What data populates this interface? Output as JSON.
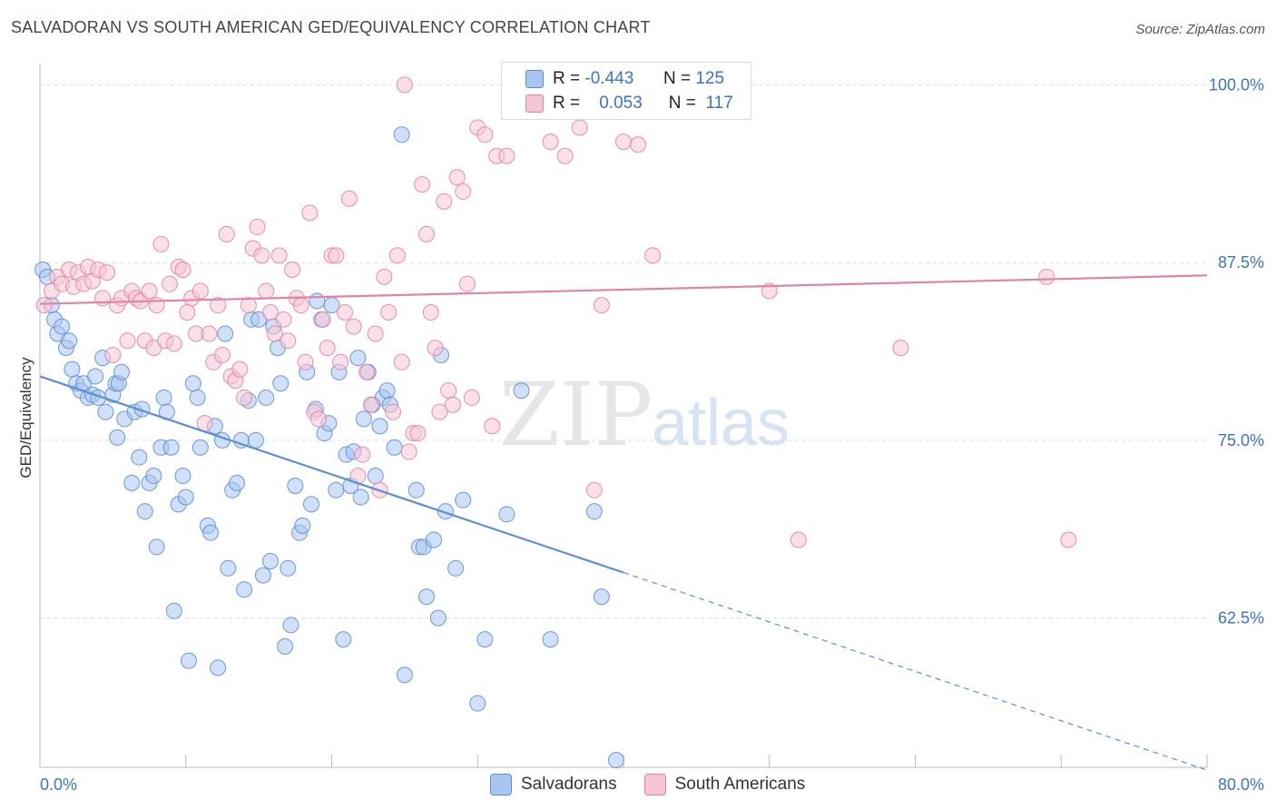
{
  "title": "SALVADORAN VS SOUTH AMERICAN GED/EQUIVALENCY CORRELATION CHART",
  "source": "Source: ZipAtlas.com",
  "watermark": {
    "zip": "ZIP",
    "atlas": "atlas"
  },
  "legend": {
    "rows": [
      {
        "r_label": "R =",
        "r_value": "-0.443",
        "n_label": "N =",
        "n_value": "125",
        "color": "#a9c6f2"
      },
      {
        "r_label": "R =",
        "r_value": "0.053",
        "n_label": "N =",
        "n_value": "117",
        "color": "#f7b7cb"
      }
    ]
  },
  "bottom_legend": [
    {
      "label": "Salvadorans",
      "color": "#a9c6f2",
      "border": "#5b8fd6"
    },
    {
      "label": "South Americans",
      "color": "#f7c6d5",
      "border": "#e283a3"
    }
  ],
  "chart_data": {
    "type": "scatter",
    "title": "SALVADORAN VS SOUTH AMERICAN GED/EQUIVALENCY CORRELATION CHART",
    "xlabel": "",
    "ylabel": "GED/Equivalency",
    "xlim": [
      0,
      80
    ],
    "ylim": [
      52,
      101.5
    ],
    "x_tick_labels": [
      "0.0%",
      "80.0%"
    ],
    "y_ticks": [
      {
        "value": 100,
        "label": "100.0%"
      },
      {
        "value": 87.5,
        "label": "87.5%"
      },
      {
        "value": 75,
        "label": "75.0%"
      },
      {
        "value": 62.5,
        "label": "62.5%"
      }
    ],
    "grid": "horizontal dashed",
    "legend_position": "top-center",
    "series": [
      {
        "name": "Salvadorans",
        "color": "#5b8fd6",
        "fill": "#a9c6f2",
        "trend": {
          "x0": 0,
          "y0": 79.5,
          "x1": 40,
          "y1": 65.7,
          "dash_to_x": 80,
          "dash_to_y": 51.8
        },
        "points": [
          [
            0.2,
            87.0
          ],
          [
            0.5,
            86.5
          ],
          [
            0.8,
            84.5
          ],
          [
            1.0,
            83.5
          ],
          [
            1.2,
            82.5
          ],
          [
            1.5,
            83.0
          ],
          [
            1.8,
            81.5
          ],
          [
            2.0,
            82.0
          ],
          [
            2.2,
            80.0
          ],
          [
            2.5,
            79.0
          ],
          [
            2.8,
            78.5
          ],
          [
            3.0,
            79.0
          ],
          [
            3.3,
            78.0
          ],
          [
            3.6,
            78.2
          ],
          [
            3.8,
            79.5
          ],
          [
            4.0,
            78.0
          ],
          [
            4.3,
            80.8
          ],
          [
            4.5,
            77.0
          ],
          [
            5.0,
            78.2
          ],
          [
            5.2,
            79.0
          ],
          [
            5.3,
            75.2
          ],
          [
            5.4,
            79.0
          ],
          [
            5.6,
            79.8
          ],
          [
            5.8,
            76.5
          ],
          [
            6.3,
            72.0
          ],
          [
            6.5,
            77.0
          ],
          [
            6.8,
            73.8
          ],
          [
            7.0,
            77.2
          ],
          [
            7.2,
            70.0
          ],
          [
            7.5,
            72.0
          ],
          [
            7.8,
            72.5
          ],
          [
            8.0,
            67.5
          ],
          [
            8.3,
            74.5
          ],
          [
            8.5,
            78.0
          ],
          [
            8.7,
            77.0
          ],
          [
            9.0,
            74.5
          ],
          [
            9.2,
            63.0
          ],
          [
            9.5,
            70.5
          ],
          [
            9.8,
            72.5
          ],
          [
            10.0,
            71.0
          ],
          [
            10.2,
            59.5
          ],
          [
            10.5,
            79.0
          ],
          [
            10.8,
            78.0
          ],
          [
            11.0,
            74.5
          ],
          [
            11.5,
            69.0
          ],
          [
            11.7,
            68.5
          ],
          [
            12.0,
            76.0
          ],
          [
            12.2,
            59.0
          ],
          [
            12.5,
            75.0
          ],
          [
            12.7,
            82.5
          ],
          [
            12.9,
            66.0
          ],
          [
            13.2,
            71.5
          ],
          [
            13.5,
            72.0
          ],
          [
            13.8,
            75.0
          ],
          [
            14.0,
            64.5
          ],
          [
            14.3,
            77.8
          ],
          [
            14.5,
            83.5
          ],
          [
            14.8,
            75.0
          ],
          [
            15.0,
            83.5
          ],
          [
            15.3,
            65.5
          ],
          [
            15.5,
            78.0
          ],
          [
            15.8,
            66.5
          ],
          [
            16.0,
            83.0
          ],
          [
            16.3,
            81.5
          ],
          [
            16.5,
            79.0
          ],
          [
            16.8,
            60.5
          ],
          [
            17.0,
            66.0
          ],
          [
            17.2,
            62.0
          ],
          [
            17.5,
            71.8
          ],
          [
            17.8,
            68.5
          ],
          [
            18.0,
            69.0
          ],
          [
            18.3,
            79.8
          ],
          [
            18.6,
            70.5
          ],
          [
            18.9,
            77.2
          ],
          [
            19.0,
            84.8
          ],
          [
            19.3,
            83.5
          ],
          [
            19.5,
            75.5
          ],
          [
            19.8,
            76.2
          ],
          [
            20.0,
            84.5
          ],
          [
            20.3,
            71.5
          ],
          [
            20.5,
            79.8
          ],
          [
            20.8,
            61.0
          ],
          [
            21.0,
            74.0
          ],
          [
            21.3,
            71.8
          ],
          [
            21.5,
            74.2
          ],
          [
            21.8,
            80.8
          ],
          [
            22.0,
            71.0
          ],
          [
            22.2,
            76.5
          ],
          [
            22.5,
            79.8
          ],
          [
            22.8,
            77.5
          ],
          [
            23.0,
            72.5
          ],
          [
            23.3,
            76.0
          ],
          [
            23.5,
            78.0
          ],
          [
            23.8,
            78.5
          ],
          [
            24.0,
            77.5
          ],
          [
            24.3,
            74.5
          ],
          [
            24.8,
            96.5
          ],
          [
            25.0,
            58.5
          ],
          [
            25.8,
            71.5
          ],
          [
            26.0,
            67.5
          ],
          [
            26.3,
            67.5
          ],
          [
            26.5,
            64.0
          ],
          [
            27.0,
            68.0
          ],
          [
            27.3,
            62.5
          ],
          [
            27.5,
            81.0
          ],
          [
            27.8,
            70.0
          ],
          [
            28.5,
            66.0
          ],
          [
            29.0,
            70.8
          ],
          [
            30.0,
            56.5
          ],
          [
            30.5,
            61.0
          ],
          [
            32.0,
            69.8
          ],
          [
            33.0,
            78.5
          ],
          [
            35.0,
            61.0
          ],
          [
            38.0,
            70.0
          ],
          [
            38.5,
            64.0
          ],
          [
            39.5,
            52.5
          ]
        ]
      },
      {
        "name": "South Americans",
        "color": "#e283a3",
        "fill": "#f7c6d5",
        "trend": {
          "x0": 0,
          "y0": 84.6,
          "x1": 80,
          "y1": 86.6
        },
        "points": [
          [
            0.3,
            84.5
          ],
          [
            0.8,
            85.5
          ],
          [
            1.2,
            86.5
          ],
          [
            1.5,
            86.0
          ],
          [
            2.0,
            87.0
          ],
          [
            2.3,
            85.8
          ],
          [
            2.6,
            86.8
          ],
          [
            3.0,
            86.0
          ],
          [
            3.3,
            87.2
          ],
          [
            3.6,
            86.2
          ],
          [
            4.0,
            87.0
          ],
          [
            4.3,
            85.0
          ],
          [
            4.6,
            86.8
          ],
          [
            5.0,
            81.0
          ],
          [
            5.3,
            84.5
          ],
          [
            5.6,
            85.0
          ],
          [
            6.0,
            82.0
          ],
          [
            6.3,
            85.5
          ],
          [
            6.6,
            85.0
          ],
          [
            6.9,
            84.8
          ],
          [
            7.2,
            82.0
          ],
          [
            7.5,
            85.5
          ],
          [
            7.8,
            81.5
          ],
          [
            8.0,
            84.5
          ],
          [
            8.3,
            88.8
          ],
          [
            8.6,
            82.0
          ],
          [
            8.9,
            86.0
          ],
          [
            9.2,
            81.8
          ],
          [
            9.5,
            87.2
          ],
          [
            9.8,
            87.0
          ],
          [
            10.1,
            84.0
          ],
          [
            10.4,
            85.0
          ],
          [
            10.7,
            82.5
          ],
          [
            11.0,
            85.5
          ],
          [
            11.3,
            76.2
          ],
          [
            11.6,
            82.5
          ],
          [
            11.9,
            80.5
          ],
          [
            12.2,
            84.5
          ],
          [
            12.5,
            81.0
          ],
          [
            12.8,
            89.5
          ],
          [
            13.1,
            79.5
          ],
          [
            13.4,
            79.2
          ],
          [
            13.7,
            80.0
          ],
          [
            14.0,
            78.0
          ],
          [
            14.3,
            84.5
          ],
          [
            14.6,
            88.5
          ],
          [
            14.9,
            90.0
          ],
          [
            15.2,
            88.0
          ],
          [
            15.5,
            85.5
          ],
          [
            15.8,
            84.0
          ],
          [
            16.1,
            82.5
          ],
          [
            16.4,
            88.0
          ],
          [
            16.7,
            83.5
          ],
          [
            17.0,
            82.0
          ],
          [
            17.3,
            87.0
          ],
          [
            17.6,
            85.0
          ],
          [
            17.9,
            84.5
          ],
          [
            18.2,
            80.5
          ],
          [
            18.5,
            91.0
          ],
          [
            18.8,
            77.0
          ],
          [
            19.1,
            76.5
          ],
          [
            19.4,
            83.5
          ],
          [
            19.7,
            81.5
          ],
          [
            20.0,
            88.0
          ],
          [
            20.3,
            88.0
          ],
          [
            20.6,
            80.5
          ],
          [
            20.9,
            84.0
          ],
          [
            21.2,
            92.0
          ],
          [
            21.5,
            83.0
          ],
          [
            21.8,
            72.5
          ],
          [
            22.1,
            74.0
          ],
          [
            22.4,
            79.8
          ],
          [
            22.7,
            77.5
          ],
          [
            23.0,
            82.5
          ],
          [
            23.3,
            71.5
          ],
          [
            23.6,
            86.5
          ],
          [
            23.9,
            84.0
          ],
          [
            24.2,
            77.0
          ],
          [
            24.5,
            88.0
          ],
          [
            24.8,
            80.5
          ],
          [
            25.0,
            100.0
          ],
          [
            25.3,
            74.2
          ],
          [
            25.6,
            75.5
          ],
          [
            25.9,
            75.5
          ],
          [
            26.2,
            93.0
          ],
          [
            26.5,
            89.5
          ],
          [
            26.8,
            84.0
          ],
          [
            27.1,
            81.5
          ],
          [
            27.4,
            77.0
          ],
          [
            27.7,
            91.8
          ],
          [
            28.0,
            78.5
          ],
          [
            28.3,
            77.5
          ],
          [
            28.6,
            93.5
          ],
          [
            29.0,
            92.5
          ],
          [
            29.3,
            86.0
          ],
          [
            29.6,
            78.0
          ],
          [
            30.0,
            97.0
          ],
          [
            30.5,
            96.5
          ],
          [
            31.0,
            76.0
          ],
          [
            31.3,
            95.0
          ],
          [
            32.0,
            95.0
          ],
          [
            33.0,
            100.0
          ],
          [
            35.0,
            96.0
          ],
          [
            35.5,
            99.0
          ],
          [
            36.0,
            95.0
          ],
          [
            37.0,
            97.0
          ],
          [
            37.5,
            100.0
          ],
          [
            38.0,
            71.5
          ],
          [
            38.5,
            84.5
          ],
          [
            40.0,
            96.0
          ],
          [
            41.0,
            95.8
          ],
          [
            42.0,
            88.0
          ],
          [
            50.0,
            85.5
          ],
          [
            52.0,
            68.0
          ],
          [
            59.0,
            81.5
          ],
          [
            69.0,
            86.5
          ],
          [
            70.5,
            68.0
          ]
        ]
      }
    ]
  }
}
